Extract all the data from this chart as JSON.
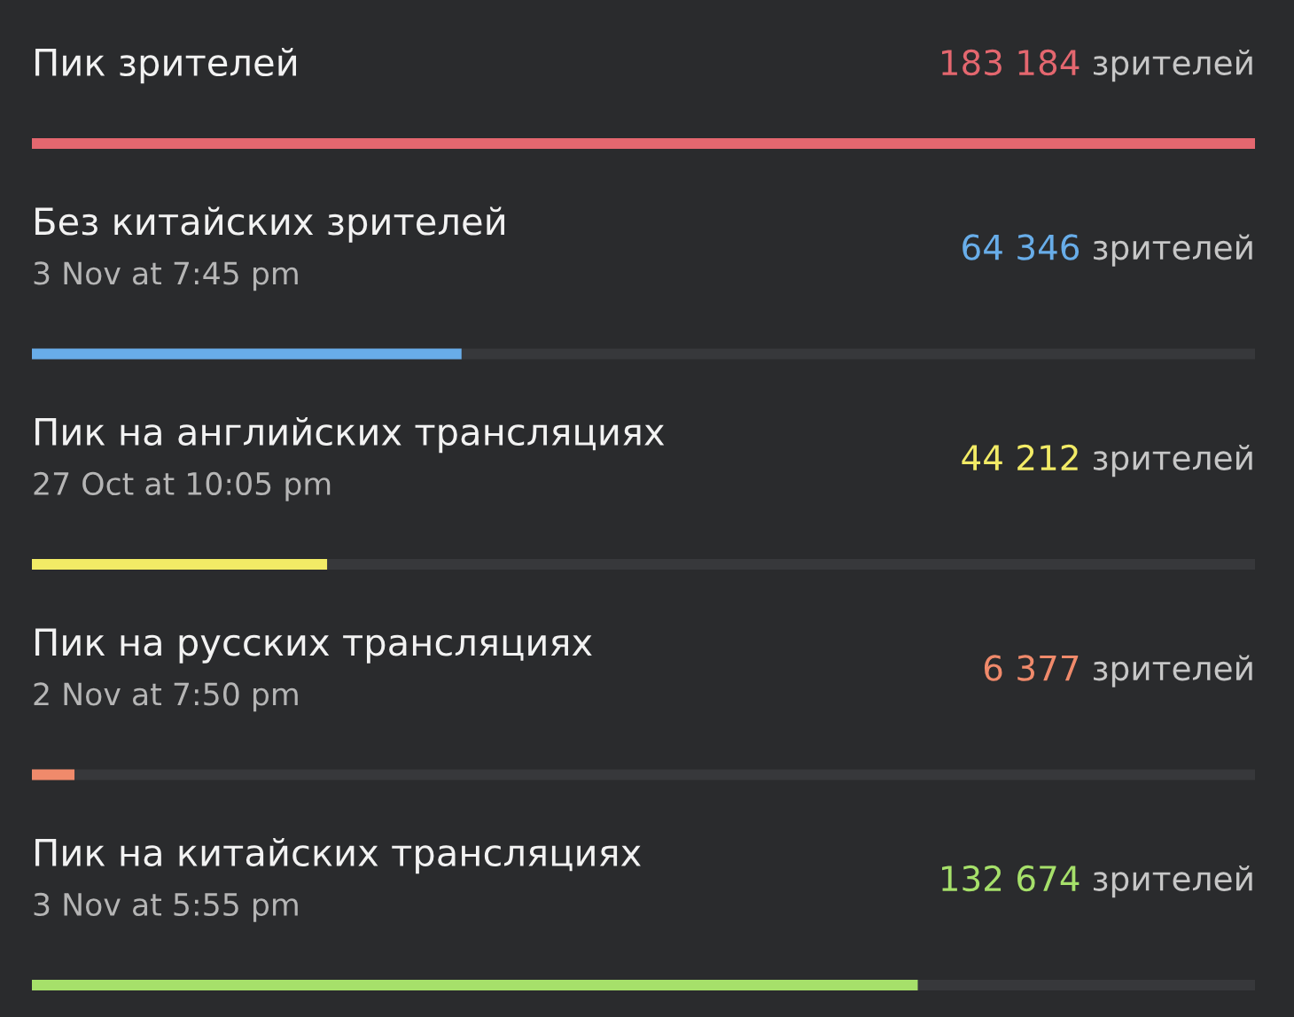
{
  "chart_data": {
    "type": "bar",
    "orientation": "horizontal",
    "categories": [
      "Пик зрителей",
      "Без китайских зрителей\n3 Nov at 7:45 pm",
      "Пик на английских трансляциях\n27 Oct at 10:05 pm",
      "Пик на русских трансляциях\n2 Nov at 7:50 pm",
      "Пик на китайских трансляциях\n3 Nov at 5:55 pm"
    ],
    "values": [
      183184,
      64346,
      44212,
      6377,
      132674
    ],
    "colors": [
      "#e4676f",
      "#68ade9",
      "#f2eb66",
      "#f08a6b",
      "#a6e06a"
    ],
    "value_labels": [
      "183 184",
      "64 346",
      "44 212",
      "6 377",
      "132 674"
    ],
    "xlabel": "зрителей",
    "tick_labels": "y"
  }
}
